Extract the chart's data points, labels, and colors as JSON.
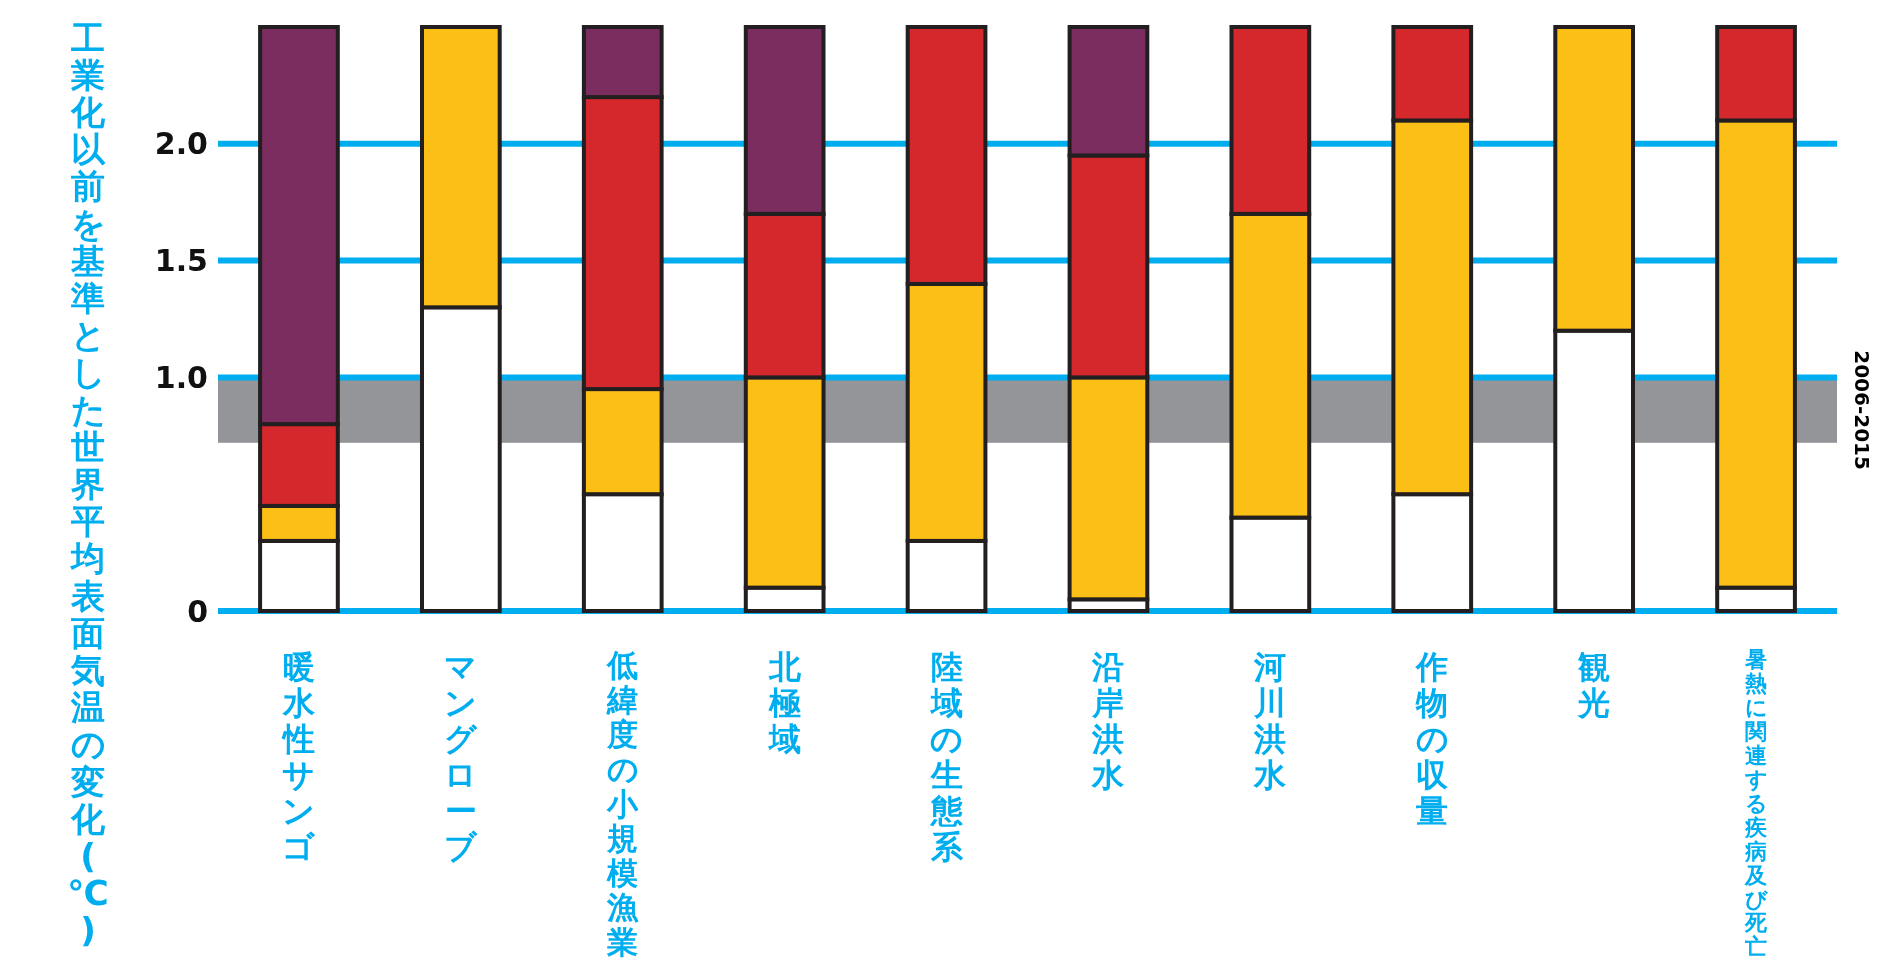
{
  "chart_data": {
    "type": "bar",
    "ylabel": "工業化以前を基準とした世界平均表面気温の変化(℃)",
    "categories": [
      "暖水性サンゴ",
      "マングローブ",
      "低緯度の小規模漁業",
      "北極域",
      "陸域の生態系",
      "沿岸洪水",
      "河川洪水",
      "作物の収量",
      "観光",
      "暑熱に関連する疾病及び死亡"
    ],
    "stacked": true,
    "series": [
      {
        "color": "#ffffff",
        "values": [
          0.3,
          1.3,
          0.5,
          0.1,
          0.3,
          0.05,
          0.4,
          0.5,
          1.2,
          0.1
        ]
      },
      {
        "color": "#fbbf16",
        "values": [
          0.15,
          1.2,
          0.45,
          0.9,
          1.1,
          0.95,
          1.3,
          1.6,
          1.3,
          2.0
        ]
      },
      {
        "color": "#d4282d",
        "values": [
          0.35,
          0,
          1.25,
          0.7,
          1.1,
          0.95,
          0.8,
          0.4,
          0,
          0.4
        ]
      },
      {
        "color": "#7a2d5e",
        "values": [
          1.7,
          0,
          0.3,
          0.8,
          0,
          0.55,
          0,
          0,
          0,
          0
        ]
      }
    ],
    "ylim": [
      0,
      2.5
    ],
    "yticks": [
      0,
      {
        "value": 1,
        "label": "1.0"
      },
      {
        "value": 1.5,
        "label": "1.5"
      },
      {
        "value": 2,
        "label": "2.0"
      }
    ],
    "grid": "y",
    "bands": [
      {
        "axis": "y",
        "from": 0.72,
        "to": 1.0,
        "label": "2006-2015",
        "color": "#939598"
      }
    ]
  }
}
